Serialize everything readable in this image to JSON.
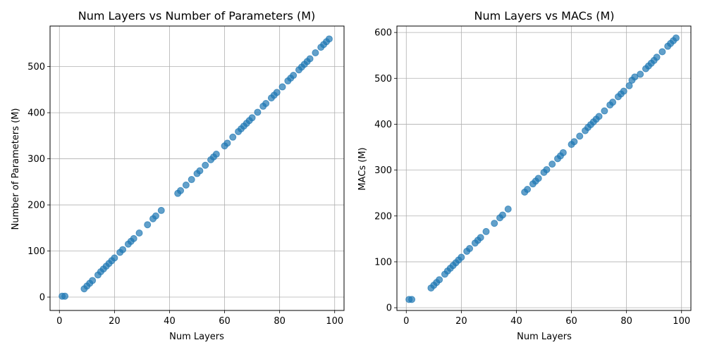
{
  "chart_data": [
    {
      "type": "scatter",
      "title": "Num Layers vs Number of Parameters (M)",
      "xlabel": "Num Layers",
      "ylabel": "Number of Parameters (M)",
      "xlim": [
        -3.4,
        103.4
      ],
      "ylim": [
        -29,
        588
      ],
      "xticks": [
        0,
        20,
        40,
        60,
        80,
        100
      ],
      "yticks": [
        0,
        100,
        200,
        300,
        400,
        500
      ],
      "grid": true,
      "color": "#1f77b4",
      "points": {
        "x": [
          1,
          2,
          9,
          10,
          11,
          12,
          14,
          15,
          16,
          17,
          18,
          19,
          20,
          22,
          23,
          25,
          26,
          27,
          29,
          32,
          34,
          35,
          37,
          43,
          44,
          46,
          48,
          50,
          51,
          53,
          55,
          56,
          57,
          60,
          61,
          63,
          65,
          66,
          67,
          68,
          69,
          70,
          72,
          74,
          75,
          77,
          78,
          79,
          81,
          83,
          84,
          85,
          87,
          88,
          89,
          90,
          91,
          93,
          95,
          96,
          97,
          98
        ],
        "y": [
          2,
          2,
          18,
          24,
          30,
          36,
          48,
          55,
          61,
          67,
          73,
          79,
          85,
          97,
          103,
          115,
          121,
          127,
          139,
          157,
          170,
          176,
          188,
          225,
          231,
          243,
          255,
          268,
          274,
          286,
          298,
          304,
          310,
          328,
          334,
          347,
          359,
          365,
          371,
          377,
          383,
          389,
          401,
          414,
          420,
          432,
          438,
          444,
          456,
          469,
          475,
          481,
          493,
          499,
          505,
          511,
          517,
          530,
          542,
          548,
          554,
          560
        ]
      }
    },
    {
      "type": "scatter",
      "title": "Num Layers vs MACs (M)",
      "xlabel": "Num Layers",
      "ylabel": "MACs (M)",
      "xlim": [
        -3.4,
        103.4
      ],
      "ylim": [
        -6,
        614
      ],
      "xticks": [
        0,
        20,
        40,
        60,
        80,
        100
      ],
      "yticks": [
        0,
        100,
        200,
        300,
        400,
        500,
        600
      ],
      "grid": true,
      "color": "#1f77b4",
      "points": {
        "x": [
          1,
          2,
          9,
          10,
          11,
          12,
          14,
          15,
          16,
          17,
          18,
          19,
          20,
          22,
          23,
          25,
          26,
          27,
          29,
          32,
          34,
          35,
          37,
          43,
          44,
          46,
          47,
          48,
          50,
          51,
          53,
          55,
          56,
          57,
          60,
          61,
          63,
          65,
          66,
          67,
          68,
          69,
          70,
          72,
          74,
          75,
          77,
          78,
          79,
          81,
          82,
          83,
          85,
          87,
          88,
          89,
          90,
          91,
          93,
          95,
          96,
          97,
          98
        ],
        "y": [
          18,
          18,
          43,
          49,
          55,
          61,
          73,
          80,
          86,
          92,
          98,
          104,
          110,
          123,
          129,
          141,
          147,
          153,
          166,
          184,
          196,
          202,
          215,
          252,
          258,
          270,
          276,
          282,
          295,
          301,
          313,
          325,
          331,
          338,
          356,
          362,
          374,
          386,
          393,
          399,
          405,
          411,
          417,
          429,
          442,
          448,
          460,
          466,
          472,
          484,
          496,
          503,
          509,
          521,
          527,
          533,
          539,
          546,
          558,
          570,
          576,
          582,
          588
        ]
      }
    }
  ]
}
